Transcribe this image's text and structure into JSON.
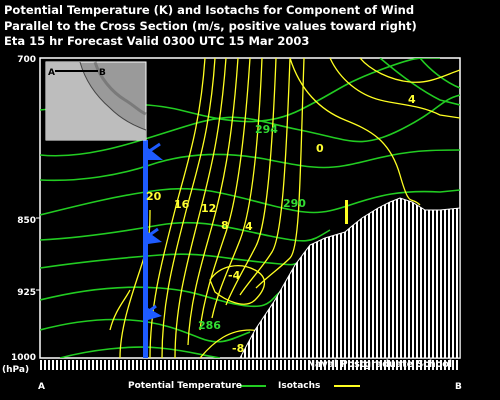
{
  "header": {
    "line1": "Potential Temperature (K) and Isotachs for Component of Wind",
    "line2": "Parallel to the Cross Section (m/s, positive values toward right)",
    "line3": "Eta 15 hr Forecast Valid 0300 UTC  15 Mar 2003"
  },
  "axis": {
    "y_ticks": [
      "700",
      "850",
      "925",
      "1000"
    ],
    "y_unit": "(hPa)",
    "x_start": "A",
    "x_end": "B"
  },
  "legend": {
    "theta_label": "Potential Temperature",
    "isotach_label": "Isotachs",
    "theta_color": "#22cc22",
    "isotach_color": "#ffff22"
  },
  "credit": "Naval Postgraduate School",
  "inset": {
    "label_a": "A",
    "label_b": "B"
  },
  "colors": {
    "background": "#000000",
    "wind_barb": "#1e5bff",
    "terrain": "#ffffff"
  },
  "chart_data": {
    "type": "contour",
    "y_axis": {
      "variable": "pressure_hPa",
      "ticks": [
        700,
        850,
        925,
        1000
      ],
      "range": [
        1000,
        700
      ],
      "log": true
    },
    "x_axis": {
      "start": "A",
      "end": "B"
    },
    "theta_labels": [
      "294",
      "290",
      "286"
    ],
    "isotach_labels": [
      "4",
      "0",
      "20",
      "16",
      "12",
      "8",
      "4",
      "-4",
      "-8"
    ]
  }
}
